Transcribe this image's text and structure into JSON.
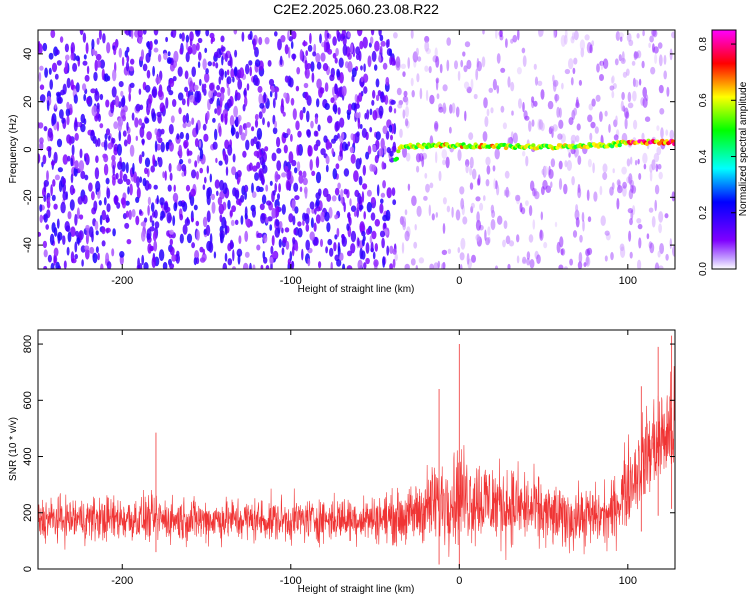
{
  "title": "C2E2.2025.060.23.08.R22",
  "chart_data": [
    {
      "type": "heatmap",
      "xlabel": "Height of straight line (km)",
      "ylabel": "Frequency (Hz)",
      "xlim": [
        -250,
        128
      ],
      "ylim": [
        -50,
        50
      ],
      "xticks": [
        -200,
        -100,
        0,
        100
      ],
      "yticks": [
        -40,
        -20,
        0,
        20,
        40
      ],
      "colorbar": {
        "label": "Normalized spectral amplitude",
        "range": [
          0.0,
          0.85
        ],
        "ticks": [
          0.0,
          0.2,
          0.4,
          0.6,
          0.8
        ],
        "colormap": [
          "#ffffff",
          "#7f00ff",
          "#0000ff",
          "#00ffff",
          "#00ff00",
          "#ffff00",
          "#ff0000",
          "#ff00ff"
        ]
      },
      "features": {
        "background_noise_until_km": -38,
        "tone": [
          {
            "x": -38,
            "y": -5
          },
          {
            "x": -35,
            "y": 1
          },
          {
            "x": -10,
            "y": 2
          },
          {
            "x": 0,
            "y": 1.5
          },
          {
            "x": 50,
            "y": 1
          },
          {
            "x": 90,
            "y": 2
          },
          {
            "x": 100,
            "y": 3
          },
          {
            "x": 128,
            "y": 3
          }
        ],
        "peak_amplitude": 0.85
      }
    },
    {
      "type": "line",
      "xlabel": "Height of straight line (km)",
      "ylabel": "SNR (10 * v/v)",
      "xlim": [
        -250,
        128
      ],
      "ylim": [
        0,
        850
      ],
      "xticks": [
        -200,
        -100,
        0,
        100
      ],
      "yticks": [
        0,
        200,
        400,
        600,
        800
      ],
      "series_color": "#f03434",
      "envelope": [
        {
          "x": -250,
          "low": 60,
          "high": 290
        },
        {
          "x": -200,
          "low": 60,
          "high": 300
        },
        {
          "x": -150,
          "low": 60,
          "high": 290
        },
        {
          "x": -100,
          "low": 60,
          "high": 290
        },
        {
          "x": -50,
          "low": 60,
          "high": 300
        },
        {
          "x": -30,
          "low": 40,
          "high": 330
        },
        {
          "x": -20,
          "low": 20,
          "high": 420
        },
        {
          "x": 0,
          "low": 10,
          "high": 520
        },
        {
          "x": 20,
          "low": 10,
          "high": 460
        },
        {
          "x": 40,
          "low": 20,
          "high": 410
        },
        {
          "x": 60,
          "low": 20,
          "high": 340
        },
        {
          "x": 90,
          "low": 30,
          "high": 350
        },
        {
          "x": 100,
          "low": 80,
          "high": 520
        },
        {
          "x": 115,
          "low": 180,
          "high": 700
        },
        {
          "x": 128,
          "low": 220,
          "high": 780
        }
      ],
      "spikes": [
        {
          "x": -180,
          "y": 485
        },
        {
          "x": 0,
          "y": 800
        },
        {
          "x": -12,
          "y": 640
        },
        {
          "x": 126,
          "y": 830
        },
        {
          "x": 118,
          "y": 790
        },
        {
          "x": 108,
          "y": 650
        }
      ]
    }
  ]
}
